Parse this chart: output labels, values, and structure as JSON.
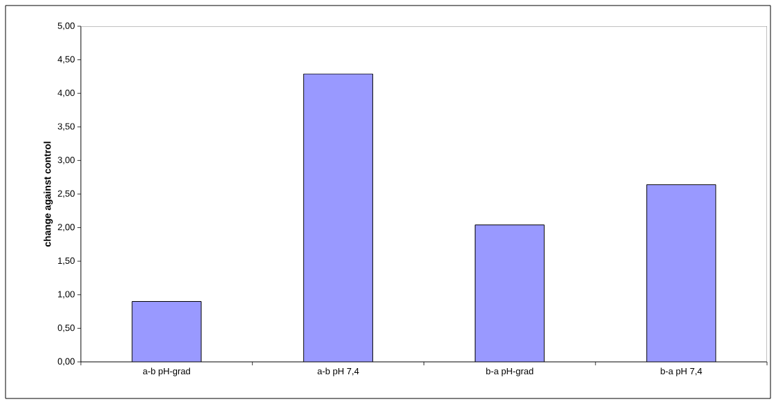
{
  "chart_data": {
    "type": "bar",
    "ylabel": "change against control",
    "categories": [
      "a-b pH-grad",
      "a-b pH 7,4",
      "b-a pH-grad",
      "b-a pH 7,4"
    ],
    "values": [
      0.9,
      4.29,
      2.04,
      2.64
    ],
    "color": "#9999ff",
    "ylim": [
      0,
      5
    ],
    "yticks": [
      {
        "value": 0,
        "label": "0,00"
      },
      {
        "value": 0.5,
        "label": "0,50"
      },
      {
        "value": 1,
        "label": "1,00"
      },
      {
        "value": 1.5,
        "label": "1,50"
      },
      {
        "value": 2,
        "label": "2,00"
      },
      {
        "value": 2.5,
        "label": "2,50"
      },
      {
        "value": 3,
        "label": "3,00"
      },
      {
        "value": 3.5,
        "label": "3,50"
      },
      {
        "value": 4,
        "label": "4,00"
      },
      {
        "value": 4.5,
        "label": "4,50"
      },
      {
        "value": 5,
        "label": "5,00"
      }
    ]
  }
}
